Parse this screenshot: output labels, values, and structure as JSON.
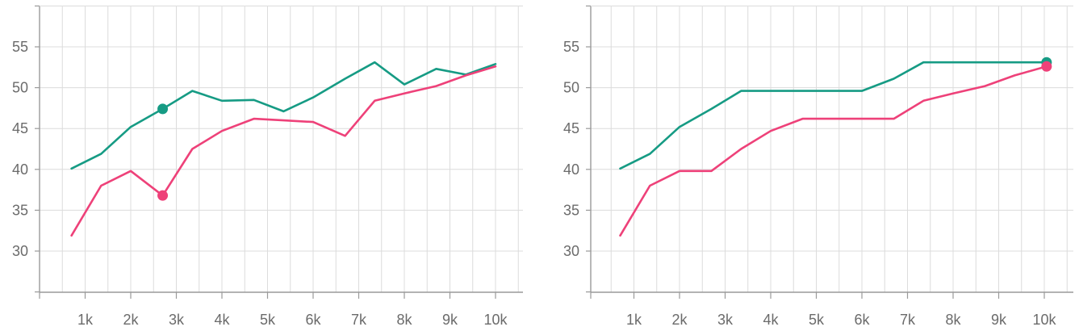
{
  "chart_data": [
    {
      "type": "line",
      "title": "",
      "xlabel": "",
      "ylabel": "",
      "xlim": [
        0,
        10500
      ],
      "ylim": [
        25,
        60
      ],
      "x_ticks": [
        1000,
        2000,
        3000,
        4000,
        5000,
        6000,
        7000,
        8000,
        9000,
        10000
      ],
      "x_tick_labels": [
        "1k",
        "2k",
        "3k",
        "4k",
        "5k",
        "6k",
        "7k",
        "8k",
        "9k",
        "10k"
      ],
      "y_ticks": [
        30,
        35,
        40,
        45,
        50,
        55
      ],
      "y_tick_labels": [
        "30",
        "35",
        "40",
        "45",
        "50",
        "55"
      ],
      "grid": true,
      "series": [
        {
          "color": "#169b84",
          "points": [
            [
              700,
              40.1
            ],
            [
              1350,
              41.9
            ],
            [
              2000,
              45.2
            ],
            [
              2700,
              47.4
            ],
            [
              3350,
              49.6
            ],
            [
              4000,
              48.4
            ],
            [
              4700,
              48.5
            ],
            [
              5350,
              47.1
            ],
            [
              6000,
              48.8
            ],
            [
              6700,
              51.1
            ],
            [
              7350,
              53.1
            ],
            [
              8000,
              50.4
            ],
            [
              8700,
              52.3
            ],
            [
              9350,
              51.6
            ],
            [
              10000,
              52.9
            ]
          ],
          "highlight": [
            2700,
            47.4
          ]
        },
        {
          "color": "#ee4179",
          "points": [
            [
              700,
              31.9
            ],
            [
              1350,
              38.0
            ],
            [
              2000,
              39.8
            ],
            [
              2700,
              36.8
            ],
            [
              3350,
              42.5
            ],
            [
              4000,
              44.7
            ],
            [
              4700,
              46.2
            ],
            [
              5350,
              46.0
            ],
            [
              6000,
              45.8
            ],
            [
              6700,
              44.1
            ],
            [
              7350,
              48.4
            ],
            [
              8000,
              49.3
            ],
            [
              8700,
              50.2
            ],
            [
              9350,
              51.5
            ],
            [
              10000,
              52.6
            ]
          ],
          "highlight": [
            2700,
            36.8
          ]
        }
      ]
    },
    {
      "type": "line",
      "title": "",
      "xlabel": "",
      "ylabel": "",
      "xlim": [
        0,
        10500
      ],
      "ylim": [
        25,
        60
      ],
      "x_ticks": [
        1000,
        2000,
        3000,
        4000,
        5000,
        6000,
        7000,
        8000,
        9000,
        10000
      ],
      "x_tick_labels": [
        "1k",
        "2k",
        "3k",
        "4k",
        "5k",
        "6k",
        "7k",
        "8k",
        "9k",
        "10k"
      ],
      "y_ticks": [
        30,
        35,
        40,
        45,
        50,
        55
      ],
      "y_tick_labels": [
        "30",
        "35",
        "40",
        "45",
        "50",
        "55"
      ],
      "grid": true,
      "series": [
        {
          "color": "#169b84",
          "points": [
            [
              700,
              40.1
            ],
            [
              1350,
              41.9
            ],
            [
              2000,
              45.2
            ],
            [
              2700,
              47.4
            ],
            [
              3350,
              49.6
            ],
            [
              4000,
              49.6
            ],
            [
              4700,
              49.6
            ],
            [
              5350,
              49.6
            ],
            [
              6000,
              49.6
            ],
            [
              6700,
              51.1
            ],
            [
              7350,
              53.1
            ],
            [
              8000,
              53.1
            ],
            [
              8700,
              53.1
            ],
            [
              9350,
              53.1
            ],
            [
              10050,
              53.1
            ]
          ],
          "highlight": [
            10050,
            53.1
          ]
        },
        {
          "color": "#ee4179",
          "points": [
            [
              700,
              31.9
            ],
            [
              1350,
              38.0
            ],
            [
              2000,
              39.8
            ],
            [
              2700,
              39.8
            ],
            [
              3350,
              42.5
            ],
            [
              4000,
              44.7
            ],
            [
              4700,
              46.2
            ],
            [
              5350,
              46.2
            ],
            [
              6000,
              46.2
            ],
            [
              6700,
              46.2
            ],
            [
              7350,
              48.4
            ],
            [
              8000,
              49.3
            ],
            [
              8700,
              50.2
            ],
            [
              9350,
              51.5
            ],
            [
              10050,
              52.6
            ]
          ],
          "highlight": [
            10050,
            52.6
          ]
        }
      ]
    }
  ]
}
